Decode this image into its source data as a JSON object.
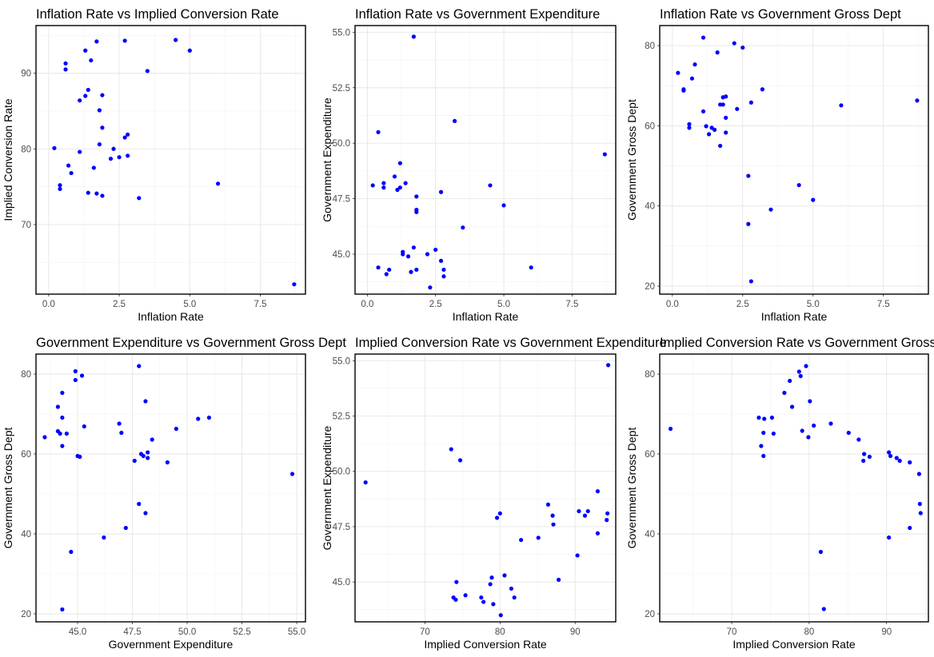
{
  "chart_data": [
    {
      "type": "scatter",
      "title": "Inflation Rate vs Implied Conversion Rate",
      "xlabel": "Inflation Rate",
      "ylabel": "Implied Conversion Rate",
      "xlim": [
        -0.45,
        9.1
      ],
      "ylim": [
        60.8,
        96.3
      ],
      "xticks": [
        0,
        2.5,
        5,
        7.5
      ],
      "xtick_labels": [
        "0.0",
        "2.5",
        "5.0",
        "7.5"
      ],
      "yticks": [
        70,
        80,
        90
      ],
      "ytick_labels": [
        "70",
        "80",
        "90"
      ],
      "color": "#0000ff",
      "points": [
        [
          0.2,
          80.1
        ],
        [
          0.4,
          75.2
        ],
        [
          0.4,
          74.7
        ],
        [
          0.6,
          91.3
        ],
        [
          0.6,
          90.5
        ],
        [
          0.7,
          77.8
        ],
        [
          0.8,
          76.8
        ],
        [
          1.1,
          79.6
        ],
        [
          1.1,
          86.4
        ],
        [
          1.3,
          93.0
        ],
        [
          1.3,
          87.0
        ],
        [
          1.4,
          87.8
        ],
        [
          1.4,
          74.2
        ],
        [
          1.5,
          91.7
        ],
        [
          1.6,
          77.5
        ],
        [
          1.7,
          94.2
        ],
        [
          1.7,
          74.1
        ],
        [
          1.8,
          85.1
        ],
        [
          1.8,
          80.6
        ],
        [
          1.9,
          82.8
        ],
        [
          1.9,
          73.8
        ],
        [
          1.9,
          87.1
        ],
        [
          2.2,
          78.7
        ],
        [
          2.3,
          80.0
        ],
        [
          2.5,
          78.9
        ],
        [
          2.7,
          94.3
        ],
        [
          2.7,
          81.5
        ],
        [
          2.8,
          81.9
        ],
        [
          2.8,
          79.1
        ],
        [
          3.2,
          73.5
        ],
        [
          3.5,
          90.3
        ],
        [
          4.5,
          94.4
        ],
        [
          5.0,
          93.0
        ],
        [
          6.0,
          75.4
        ],
        [
          8.7,
          62.1
        ]
      ]
    },
    {
      "type": "scatter",
      "title": "Inflation Rate vs Government Expenditure",
      "xlabel": "Inflation Rate",
      "ylabel": "Government Expenditure",
      "xlim": [
        -0.45,
        9.1
      ],
      "ylim": [
        43.2,
        55.3
      ],
      "xticks": [
        0,
        2.5,
        5,
        7.5
      ],
      "xtick_labels": [
        "0.0",
        "2.5",
        "5.0",
        "7.5"
      ],
      "yticks": [
        45,
        47.5,
        50,
        52.5,
        55
      ],
      "ytick_labels": [
        "45.0",
        "47.5",
        "50.0",
        "52.5",
        "55.0"
      ],
      "color": "#0000ff",
      "points": [
        [
          0.2,
          48.1
        ],
        [
          0.4,
          44.4
        ],
        [
          0.4,
          50.5
        ],
        [
          0.6,
          48.0
        ],
        [
          0.6,
          48.2
        ],
        [
          0.7,
          44.1
        ],
        [
          0.8,
          44.3
        ],
        [
          1.0,
          48.5
        ],
        [
          1.1,
          47.9
        ],
        [
          1.2,
          48.0
        ],
        [
          1.2,
          49.1
        ],
        [
          1.3,
          45.1
        ],
        [
          1.3,
          45.0
        ],
        [
          1.4,
          48.2
        ],
        [
          1.5,
          44.9
        ],
        [
          1.6,
          44.2
        ],
        [
          1.7,
          54.8
        ],
        [
          1.7,
          45.3
        ],
        [
          1.8,
          47.0
        ],
        [
          1.8,
          44.3
        ],
        [
          1.8,
          47.6
        ],
        [
          1.8,
          46.9
        ],
        [
          2.2,
          45.0
        ],
        [
          2.3,
          43.5
        ],
        [
          2.5,
          45.2
        ],
        [
          2.7,
          47.8
        ],
        [
          2.7,
          44.7
        ],
        [
          2.8,
          44.3
        ],
        [
          2.8,
          44.0
        ],
        [
          3.2,
          51.0
        ],
        [
          3.5,
          46.2
        ],
        [
          4.5,
          48.1
        ],
        [
          5.0,
          47.2
        ],
        [
          6.0,
          44.4
        ],
        [
          8.7,
          49.5
        ]
      ]
    },
    {
      "type": "scatter",
      "title": "Inflation Rate vs Government Gross Dept",
      "xlabel": "Inflation Rate",
      "ylabel": "Government Gross Dept",
      "xlim": [
        -0.45,
        9.1
      ],
      "ylim": [
        18.0,
        85.0
      ],
      "xticks": [
        0,
        2.5,
        5,
        7.5
      ],
      "xtick_labels": [
        "0.0",
        "2.5",
        "5.0",
        "7.5"
      ],
      "yticks": [
        20,
        40,
        60,
        80
      ],
      "ytick_labels": [
        "20",
        "40",
        "60",
        "80"
      ],
      "color": "#0000ff",
      "points": [
        [
          0.2,
          73.2
        ],
        [
          0.4,
          69.1
        ],
        [
          0.4,
          68.8
        ],
        [
          0.6,
          60.4
        ],
        [
          0.6,
          59.5
        ],
        [
          0.7,
          71.8
        ],
        [
          0.8,
          75.3
        ],
        [
          1.1,
          82.0
        ],
        [
          1.1,
          63.6
        ],
        [
          1.2,
          59.9
        ],
        [
          1.3,
          57.9
        ],
        [
          1.4,
          59.5
        ],
        [
          1.5,
          59.0
        ],
        [
          1.6,
          78.3
        ],
        [
          1.7,
          55.0
        ],
        [
          1.7,
          65.3
        ],
        [
          1.8,
          65.3
        ],
        [
          1.8,
          67.1
        ],
        [
          1.9,
          67.3
        ],
        [
          1.9,
          62.0
        ],
        [
          1.9,
          58.3
        ],
        [
          2.2,
          80.6
        ],
        [
          2.3,
          64.2
        ],
        [
          2.5,
          79.5
        ],
        [
          2.7,
          47.5
        ],
        [
          2.7,
          35.5
        ],
        [
          2.8,
          65.8
        ],
        [
          2.8,
          21.2
        ],
        [
          3.2,
          69.1
        ],
        [
          3.5,
          39.1
        ],
        [
          4.5,
          45.2
        ],
        [
          5.0,
          41.5
        ],
        [
          6.0,
          65.1
        ],
        [
          8.7,
          66.3
        ]
      ]
    },
    {
      "type": "scatter",
      "title": "Government Expenditure vs Government Gross Dept",
      "xlabel": "Government Expenditure",
      "ylabel": "Government Gross Dept",
      "xlim": [
        43.1,
        55.4
      ],
      "ylim": [
        18.0,
        85.0
      ],
      "xticks": [
        45,
        47.5,
        50,
        52.5,
        55
      ],
      "xtick_labels": [
        "45.0",
        "47.5",
        "50.0",
        "52.5",
        "55.0"
      ],
      "yticks": [
        20,
        40,
        60,
        80
      ],
      "ytick_labels": [
        "20",
        "40",
        "60",
        "80"
      ],
      "color": "#0000ff",
      "points": [
        [
          43.5,
          64.2
        ],
        [
          44.1,
          65.7
        ],
        [
          44.1,
          71.8
        ],
        [
          44.2,
          65.1
        ],
        [
          44.3,
          75.3
        ],
        [
          44.3,
          69.1
        ],
        [
          44.3,
          62.0
        ],
        [
          44.3,
          21.1
        ],
        [
          44.5,
          65.1
        ],
        [
          44.7,
          35.5
        ],
        [
          44.9,
          80.7
        ],
        [
          44.9,
          78.5
        ],
        [
          45.0,
          59.5
        ],
        [
          45.1,
          59.3
        ],
        [
          45.2,
          79.6
        ],
        [
          45.3,
          66.9
        ],
        [
          46.2,
          39.1
        ],
        [
          46.9,
          67.6
        ],
        [
          47.0,
          65.3
        ],
        [
          47.2,
          41.5
        ],
        [
          47.6,
          58.3
        ],
        [
          47.8,
          47.5
        ],
        [
          47.8,
          82.0
        ],
        [
          47.9,
          60.0
        ],
        [
          48.0,
          59.5
        ],
        [
          48.1,
          45.2
        ],
        [
          48.1,
          73.2
        ],
        [
          48.2,
          60.4
        ],
        [
          48.2,
          59.0
        ],
        [
          48.4,
          63.6
        ],
        [
          49.1,
          57.9
        ],
        [
          49.5,
          66.3
        ],
        [
          50.5,
          68.8
        ],
        [
          51.0,
          69.1
        ],
        [
          54.8,
          55.0
        ]
      ]
    },
    {
      "type": "scatter",
      "title": "Implied Conversion Rate vs Government Expenditure",
      "xlabel": "Implied Conversion Rate",
      "ylabel": "Government Expenditure",
      "xlim": [
        60.7,
        95.4
      ],
      "ylim": [
        43.2,
        55.3
      ],
      "xticks": [
        70,
        80,
        90
      ],
      "xtick_labels": [
        "70",
        "80",
        "90"
      ],
      "yticks": [
        45,
        47.5,
        50,
        52.5,
        55
      ],
      "ytick_labels": [
        "45.0",
        "47.5",
        "50.0",
        "52.5",
        "55.0"
      ],
      "color": "#0000ff",
      "points": [
        [
          62.1,
          49.5
        ],
        [
          73.5,
          51.0
        ],
        [
          73.8,
          44.3
        ],
        [
          74.1,
          44.2
        ],
        [
          74.2,
          45.0
        ],
        [
          74.7,
          50.5
        ],
        [
          75.4,
          44.4
        ],
        [
          77.5,
          44.3
        ],
        [
          77.8,
          44.1
        ],
        [
          78.7,
          44.9
        ],
        [
          78.9,
          45.2
        ],
        [
          79.1,
          44.0
        ],
        [
          79.6,
          47.9
        ],
        [
          80.0,
          48.1
        ],
        [
          80.1,
          43.5
        ],
        [
          80.6,
          45.3
        ],
        [
          81.5,
          44.7
        ],
        [
          81.9,
          44.3
        ],
        [
          82.8,
          46.9
        ],
        [
          85.1,
          47.0
        ],
        [
          86.4,
          48.5
        ],
        [
          87.0,
          48.0
        ],
        [
          87.1,
          47.6
        ],
        [
          87.8,
          45.1
        ],
        [
          90.3,
          46.2
        ],
        [
          90.5,
          48.2
        ],
        [
          91.3,
          48.0
        ],
        [
          91.7,
          48.2
        ],
        [
          93.0,
          47.2
        ],
        [
          93.0,
          49.1
        ],
        [
          94.2,
          47.8
        ],
        [
          94.3,
          48.1
        ],
        [
          94.4,
          54.8
        ]
      ]
    },
    {
      "type": "scatter",
      "title": "Implied Conversion Rate vs Government Gross Dept",
      "xlabel": "Implied Conversion Rate",
      "ylabel": "Government Gross Dept",
      "xlim": [
        60.7,
        95.4
      ],
      "ylim": [
        18.0,
        85.0
      ],
      "xticks": [
        70,
        80,
        90
      ],
      "xtick_labels": [
        "70",
        "80",
        "90"
      ],
      "yticks": [
        20,
        40,
        60,
        80
      ],
      "ytick_labels": [
        "20",
        "40",
        "60",
        "80"
      ],
      "color": "#0000ff",
      "points": [
        [
          62.1,
          66.3
        ],
        [
          73.5,
          69.1
        ],
        [
          73.8,
          62.0
        ],
        [
          74.1,
          59.5
        ],
        [
          74.1,
          65.3
        ],
        [
          74.2,
          68.8
        ],
        [
          75.2,
          69.1
        ],
        [
          75.4,
          65.1
        ],
        [
          76.8,
          75.3
        ],
        [
          77.5,
          78.3
        ],
        [
          77.8,
          71.8
        ],
        [
          78.7,
          80.6
        ],
        [
          78.9,
          79.5
        ],
        [
          79.1,
          65.8
        ],
        [
          79.6,
          82.0
        ],
        [
          79.9,
          64.2
        ],
        [
          80.1,
          73.2
        ],
        [
          80.6,
          67.1
        ],
        [
          81.5,
          35.5
        ],
        [
          81.9,
          21.2
        ],
        [
          82.8,
          67.6
        ],
        [
          85.1,
          65.3
        ],
        [
          86.4,
          63.6
        ],
        [
          87.0,
          58.3
        ],
        [
          87.1,
          60.0
        ],
        [
          87.8,
          59.3
        ],
        [
          90.3,
          60.4
        ],
        [
          90.3,
          39.1
        ],
        [
          90.5,
          59.5
        ],
        [
          91.3,
          59.0
        ],
        [
          91.7,
          58.3
        ],
        [
          93.0,
          57.9
        ],
        [
          93.0,
          41.5
        ],
        [
          94.2,
          55.0
        ],
        [
          94.3,
          47.5
        ],
        [
          94.4,
          45.2
        ]
      ]
    }
  ]
}
